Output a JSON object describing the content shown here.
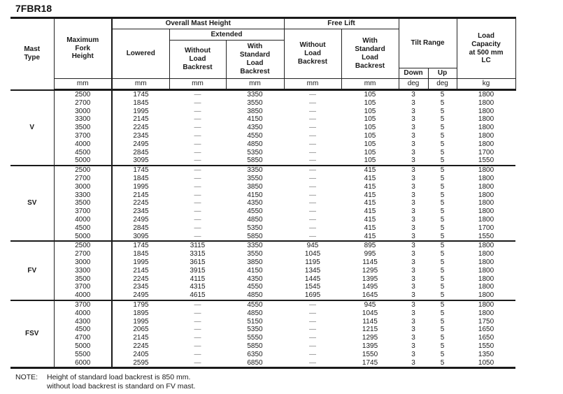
{
  "title": "7FBR18",
  "table": {
    "header": {
      "mast_type": "Mast\nType",
      "max_fork_height": "Maximum\nFork\nHeight",
      "overall_mast_height": "Overall Mast Height",
      "extended": "Extended",
      "lowered": "Lowered",
      "ext_without": "Without\nLoad\nBackrest",
      "ext_with": "With\nStandard\nLoad\nBackrest",
      "free_lift": "Free Lift",
      "fl_without": "Without\nLoad\nBackrest",
      "fl_with": "With\nStandard\nLoad\nBackrest",
      "tilt_range": "Tilt Range",
      "down": "Down",
      "up": "Up",
      "load_capacity": "Load\nCapacity\nat 500 mm\nLC",
      "units": [
        "mm",
        "mm",
        "mm",
        "mm",
        "mm",
        "mm",
        "deg",
        "deg",
        "kg"
      ]
    },
    "groups": [
      {
        "mast_type": "V",
        "rows": [
          [
            "2500",
            "1745",
            "—",
            "3350",
            "—",
            "105",
            "3",
            "5",
            "1800"
          ],
          [
            "2700",
            "1845",
            "—",
            "3550",
            "—",
            "105",
            "3",
            "5",
            "1800"
          ],
          [
            "3000",
            "1995",
            "—",
            "3850",
            "—",
            "105",
            "3",
            "5",
            "1800"
          ],
          [
            "3300",
            "2145",
            "—",
            "4150",
            "—",
            "105",
            "3",
            "5",
            "1800"
          ],
          [
            "3500",
            "2245",
            "—",
            "4350",
            "—",
            "105",
            "3",
            "5",
            "1800"
          ],
          [
            "3700",
            "2345",
            "—",
            "4550",
            "—",
            "105",
            "3",
            "5",
            "1800"
          ],
          [
            "4000",
            "2495",
            "—",
            "4850",
            "—",
            "105",
            "3",
            "5",
            "1800"
          ],
          [
            "4500",
            "2845",
            "—",
            "5350",
            "—",
            "105",
            "3",
            "5",
            "1700"
          ],
          [
            "5000",
            "3095",
            "—",
            "5850",
            "—",
            "105",
            "3",
            "5",
            "1550"
          ]
        ]
      },
      {
        "mast_type": "SV",
        "rows": [
          [
            "2500",
            "1745",
            "—",
            "3350",
            "—",
            "415",
            "3",
            "5",
            "1800"
          ],
          [
            "2700",
            "1845",
            "—",
            "3550",
            "—",
            "415",
            "3",
            "5",
            "1800"
          ],
          [
            "3000",
            "1995",
            "—",
            "3850",
            "—",
            "415",
            "3",
            "5",
            "1800"
          ],
          [
            "3300",
            "2145",
            "—",
            "4150",
            "—",
            "415",
            "3",
            "5",
            "1800"
          ],
          [
            "3500",
            "2245",
            "—",
            "4350",
            "—",
            "415",
            "3",
            "5",
            "1800"
          ],
          [
            "3700",
            "2345",
            "—",
            "4550",
            "—",
            "415",
            "3",
            "5",
            "1800"
          ],
          [
            "4000",
            "2495",
            "—",
            "4850",
            "—",
            "415",
            "3",
            "5",
            "1800"
          ],
          [
            "4500",
            "2845",
            "—",
            "5350",
            "—",
            "415",
            "3",
            "5",
            "1700"
          ],
          [
            "5000",
            "3095",
            "—",
            "5850",
            "—",
            "415",
            "3",
            "5",
            "1550"
          ]
        ]
      },
      {
        "mast_type": "FV",
        "rows": [
          [
            "2500",
            "1745",
            "3115",
            "3350",
            "945",
            "895",
            "3",
            "5",
            "1800"
          ],
          [
            "2700",
            "1845",
            "3315",
            "3550",
            "1045",
            "995",
            "3",
            "5",
            "1800"
          ],
          [
            "3000",
            "1995",
            "3615",
            "3850",
            "1195",
            "1145",
            "3",
            "5",
            "1800"
          ],
          [
            "3300",
            "2145",
            "3915",
            "4150",
            "1345",
            "1295",
            "3",
            "5",
            "1800"
          ],
          [
            "3500",
            "2245",
            "4115",
            "4350",
            "1445",
            "1395",
            "3",
            "5",
            "1800"
          ],
          [
            "3700",
            "2345",
            "4315",
            "4550",
            "1545",
            "1495",
            "3",
            "5",
            "1800"
          ],
          [
            "4000",
            "2495",
            "4615",
            "4850",
            "1695",
            "1645",
            "3",
            "5",
            "1800"
          ]
        ]
      },
      {
        "mast_type": "FSV",
        "rows": [
          [
            "3700",
            "1795",
            "—",
            "4550",
            "—",
            "945",
            "3",
            "5",
            "1800"
          ],
          [
            "4000",
            "1895",
            "—",
            "4850",
            "—",
            "1045",
            "3",
            "5",
            "1800"
          ],
          [
            "4300",
            "1995",
            "—",
            "5150",
            "—",
            "1145",
            "3",
            "5",
            "1750"
          ],
          [
            "4500",
            "2065",
            "—",
            "5350",
            "—",
            "1215",
            "3",
            "5",
            "1650"
          ],
          [
            "4700",
            "2145",
            "—",
            "5550",
            "—",
            "1295",
            "3",
            "5",
            "1650"
          ],
          [
            "5000",
            "2245",
            "—",
            "5850",
            "—",
            "1395",
            "3",
            "5",
            "1550"
          ],
          [
            "5500",
            "2405",
            "—",
            "6350",
            "—",
            "1550",
            "3",
            "5",
            "1350"
          ],
          [
            "6000",
            "2595",
            "—",
            "6850",
            "—",
            "1745",
            "3",
            "5",
            "1050"
          ]
        ]
      }
    ]
  },
  "note": {
    "label": "NOTE:",
    "text": "Height of standard load backrest is 850 mm.\nwithout load backrest is standard on FV mast."
  }
}
